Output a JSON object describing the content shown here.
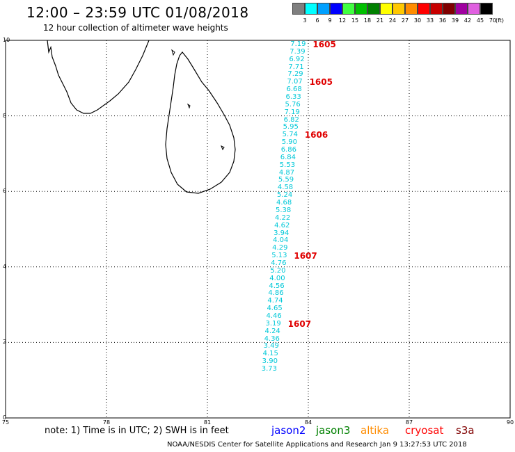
{
  "header": {
    "title": "12:00 – 23:59 UTC 01/08/2018",
    "subtitle": "12 hour collection of altimeter wave heights"
  },
  "legend": {
    "unit": "(ft)",
    "items": [
      {
        "label": "3",
        "color": "#7f7f7f"
      },
      {
        "label": "6",
        "color": "#00ffff"
      },
      {
        "label": "9",
        "color": "#00a0ff"
      },
      {
        "label": "12",
        "color": "#0000ff"
      },
      {
        "label": "15",
        "color": "#40ff40"
      },
      {
        "label": "18",
        "color": "#00c000"
      },
      {
        "label": "21",
        "color": "#008000"
      },
      {
        "label": "24",
        "color": "#ffff00"
      },
      {
        "label": "27",
        "color": "#ffc800"
      },
      {
        "label": "30",
        "color": "#ff8c00"
      },
      {
        "label": "33",
        "color": "#ff0000"
      },
      {
        "label": "36",
        "color": "#c80000"
      },
      {
        "label": "39",
        "color": "#800000"
      },
      {
        "label": "42",
        "color": "#a000a0"
      },
      {
        "label": "45",
        "color": "#e060e0"
      },
      {
        "label": "70",
        "color": "#000000"
      }
    ]
  },
  "axes": {
    "lat_ticks": [
      "10",
      "8",
      "6",
      "4",
      "2",
      "0"
    ],
    "lon_ticks": [
      "75",
      "78",
      "81",
      "84",
      "87",
      "90"
    ]
  },
  "wave_heights": [
    {
      "value": "7.19",
      "lat": 10.0,
      "lon": 84.05
    },
    {
      "value": "7.39",
      "lat": 9.8,
      "lon": 84.03
    },
    {
      "value": "6.92",
      "lat": 9.6,
      "lon": 84.01
    },
    {
      "value": "7.71",
      "lat": 9.4,
      "lon": 83.99
    },
    {
      "value": "7.29",
      "lat": 9.2,
      "lon": 83.97
    },
    {
      "value": "7.07",
      "lat": 9.0,
      "lon": 83.95
    },
    {
      "value": "6.68",
      "lat": 8.8,
      "lon": 83.93
    },
    {
      "value": "6.33",
      "lat": 8.6,
      "lon": 83.91
    },
    {
      "value": "5.76",
      "lat": 8.4,
      "lon": 83.89
    },
    {
      "value": "7.19",
      "lat": 8.2,
      "lon": 83.87
    },
    {
      "value": "6.82",
      "lat": 8.0,
      "lon": 83.85
    },
    {
      "value": "5.95",
      "lat": 7.8,
      "lon": 83.83
    },
    {
      "value": "5.74",
      "lat": 7.6,
      "lon": 83.81
    },
    {
      "value": "5.90",
      "lat": 7.4,
      "lon": 83.79
    },
    {
      "value": "6.86",
      "lat": 7.2,
      "lon": 83.77
    },
    {
      "value": "6.84",
      "lat": 7.0,
      "lon": 83.75
    },
    {
      "value": "5.53",
      "lat": 6.8,
      "lon": 83.73
    },
    {
      "value": "4.87",
      "lat": 6.6,
      "lon": 83.71
    },
    {
      "value": "5.59",
      "lat": 6.4,
      "lon": 83.69
    },
    {
      "value": "4.58",
      "lat": 6.2,
      "lon": 83.67
    },
    {
      "value": "5.24",
      "lat": 6.0,
      "lon": 83.65
    },
    {
      "value": "4.68",
      "lat": 5.8,
      "lon": 83.63
    },
    {
      "value": "5.38",
      "lat": 5.6,
      "lon": 83.61
    },
    {
      "value": "4.22",
      "lat": 5.4,
      "lon": 83.59
    },
    {
      "value": "4.62",
      "lat": 5.2,
      "lon": 83.57
    },
    {
      "value": "3.94",
      "lat": 5.0,
      "lon": 83.55
    },
    {
      "value": "4.04",
      "lat": 4.8,
      "lon": 83.53
    },
    {
      "value": "4.29",
      "lat": 4.6,
      "lon": 83.51
    },
    {
      "value": "5.13",
      "lat": 4.4,
      "lon": 83.49
    },
    {
      "value": "4.76",
      "lat": 4.2,
      "lon": 83.47
    },
    {
      "value": "5.20",
      "lat": 4.0,
      "lon": 83.45
    },
    {
      "value": "4.00",
      "lat": 3.8,
      "lon": 83.43
    },
    {
      "value": "4.56",
      "lat": 3.6,
      "lon": 83.41
    },
    {
      "value": "4.86",
      "lat": 3.4,
      "lon": 83.39
    },
    {
      "value": "4.74",
      "lat": 3.2,
      "lon": 83.37
    },
    {
      "value": "4.65",
      "lat": 3.0,
      "lon": 83.35
    },
    {
      "value": "4.46",
      "lat": 2.8,
      "lon": 83.33
    },
    {
      "value": "3.19",
      "lat": 2.6,
      "lon": 83.31
    },
    {
      "value": "4.24",
      "lat": 2.4,
      "lon": 83.29
    },
    {
      "value": "4.36",
      "lat": 2.2,
      "lon": 83.27
    },
    {
      "value": "3.49",
      "lat": 2.0,
      "lon": 83.25
    },
    {
      "value": "4.15",
      "lat": 1.8,
      "lon": 83.23
    },
    {
      "value": "3.90",
      "lat": 1.6,
      "lon": 83.21
    },
    {
      "value": "3.73",
      "lat": 1.4,
      "lon": 83.19
    }
  ],
  "pass_times": [
    {
      "label": "1605",
      "lat": 10.0,
      "lon": 84.0
    },
    {
      "label": "1605",
      "lat": 9.0,
      "lon": 84.0
    },
    {
      "label": "1606",
      "lat": 7.6,
      "lon": 84.0
    },
    {
      "label": "1607",
      "lat": 4.4,
      "lon": 84.0
    },
    {
      "label": "1607",
      "lat": 2.6,
      "lon": 84.0
    }
  ],
  "footer": {
    "note": "note: 1) Time is in UTC; 2) SWH is in feet",
    "satellites": [
      {
        "name": "jason2",
        "color": "#0000ff"
      },
      {
        "name": "jason3",
        "color": "#008000"
      },
      {
        "name": "altika",
        "color": "#ff8c00"
      },
      {
        "name": "cryosat",
        "color": "#ff0000"
      },
      {
        "name": "s3a",
        "color": "#800000"
      }
    ],
    "credit": "NOAA/NESDIS Center for Satellite Applications and Research   Jan  9 13:27:53 UTC 2018"
  }
}
